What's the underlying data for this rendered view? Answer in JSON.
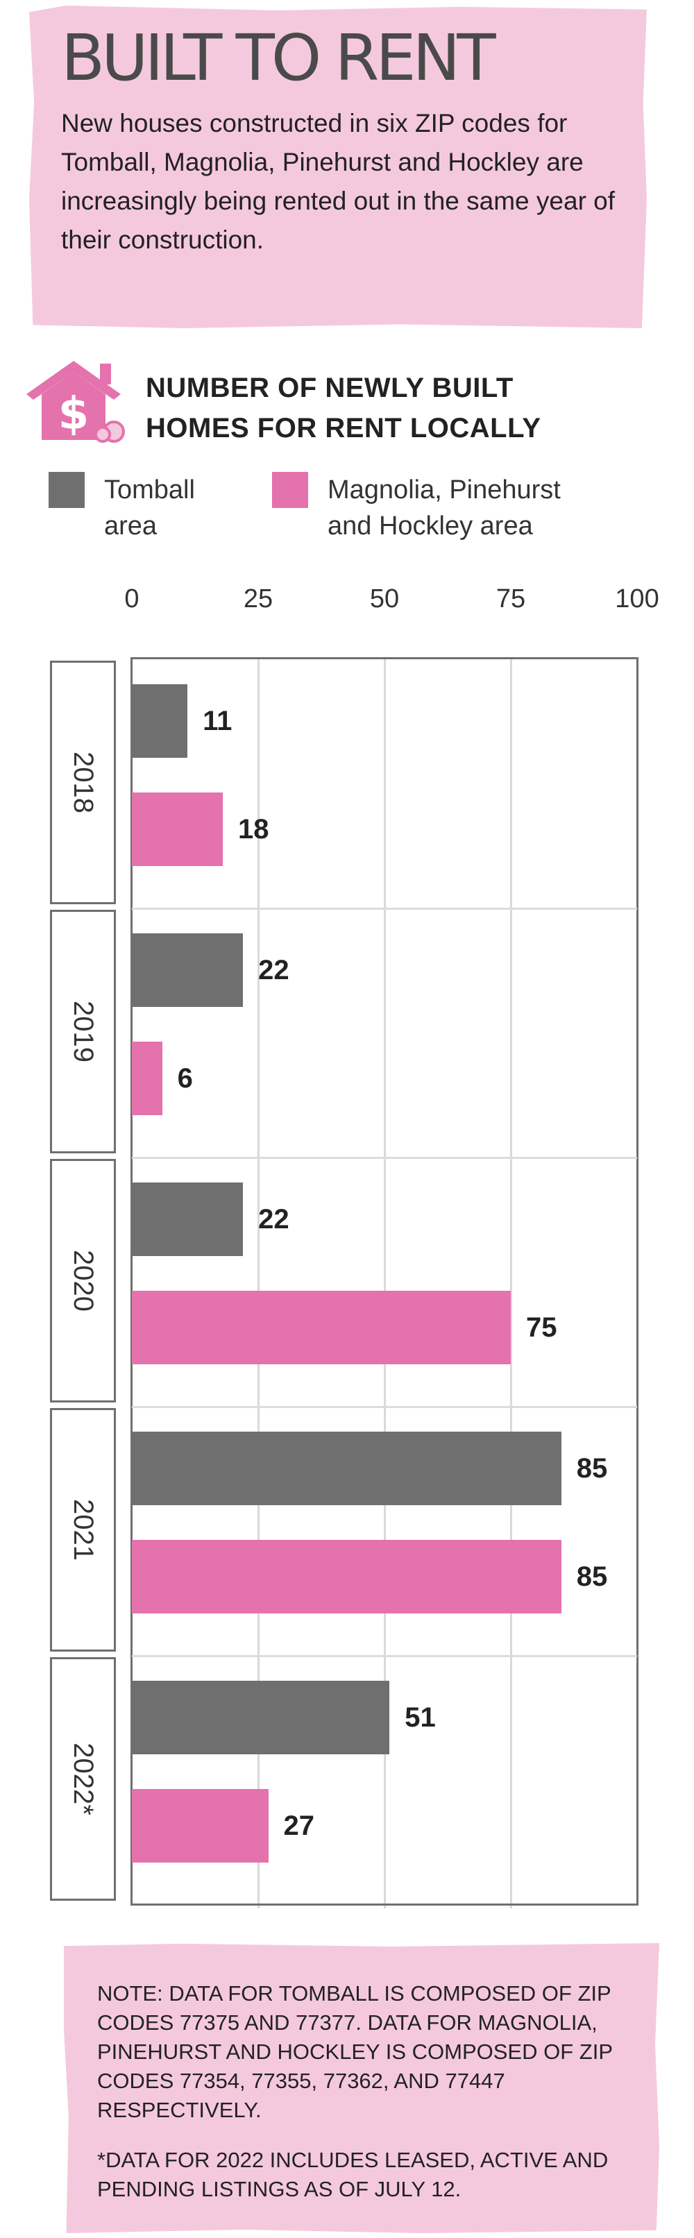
{
  "header": {
    "title": "BUILT TO RENT",
    "intro": "New houses constructed in six ZIP codes for Tomball, Magnolia, Pinehurst and Hockley are increasingly being rented out in the same year of their construction."
  },
  "chart_heading": {
    "line1": "NUMBER OF NEWLY BUILT",
    "line2": "HOMES FOR RENT LOCALLY"
  },
  "legend": [
    {
      "line1": "Tomball",
      "line2": "area",
      "color": "#6f6f6f"
    },
    {
      "line1": "Magnolia, Pinehurst",
      "line2": "and Hockley area",
      "color": "#e472ad"
    }
  ],
  "colors": {
    "tomball": "#6f6f6f",
    "magnolia": "#e472ad",
    "accent_bg": "#f5c9dd"
  },
  "icons": {
    "house": "house-with-dollar-sign-icon"
  },
  "chart_data": {
    "type": "bar",
    "orientation": "horizontal",
    "title": "NUMBER OF NEWLY BUILT HOMES FOR RENT LOCALLY",
    "categories": [
      "2018",
      "2019",
      "2020",
      "2021",
      "2022*"
    ],
    "series": [
      {
        "name": "Tomball area",
        "color": "#6f6f6f",
        "values": [
          11,
          22,
          22,
          85,
          51
        ]
      },
      {
        "name": "Magnolia, Pinehurst and Hockley area",
        "color": "#e472ad",
        "values": [
          18,
          6,
          75,
          85,
          27
        ]
      }
    ],
    "xlim": [
      0,
      100
    ],
    "xticks": [
      "0",
      "25",
      "50",
      "75",
      "100"
    ],
    "grid": true,
    "legend_position": "top"
  },
  "notes": {
    "note1": "NOTE: DATA FOR TOMBALL IS COMPOSED OF ZIP CODES 77375 AND 77377. DATA FOR MAGNOLIA, PINEHURST AND HOCKLEY IS COMPOSED OF ZIP CODES 77354, 77355, 77362, AND 77447 RESPECTIVELY.",
    "note2": "*DATA FOR 2022 INCLUDES LEASED, ACTIVE AND PENDING LISTINGS AS OF JULY 12."
  }
}
